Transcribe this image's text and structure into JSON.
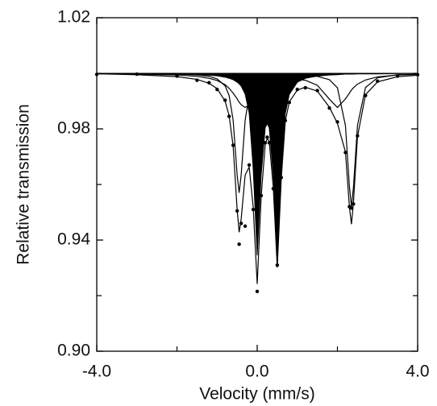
{
  "chart_data": {
    "type": "line",
    "x_label": "Velocity (mm/s)",
    "y_label": "Relative transmission",
    "x": [
      -4,
      -3,
      -2,
      -1.5,
      -1.2,
      -1.0,
      -0.8,
      -0.7,
      -0.6,
      -0.5,
      -0.45,
      -0.4,
      -0.3,
      -0.2,
      -0.1,
      0,
      0.1,
      0.2,
      0.25,
      0.3,
      0.4,
      0.5,
      0.6,
      0.7,
      0.8,
      1.0,
      1.2,
      1.5,
      1.8,
      2.0,
      2.2,
      2.3,
      2.35,
      2.4,
      2.5,
      2.7,
      3.0,
      3.5,
      4.0
    ],
    "series": [
      {
        "type": "filled",
        "color": "#000000",
        "values": [
          1.0,
          0.9999,
          0.9997,
          0.9995,
          0.9993,
          0.9991,
          0.9986,
          0.9982,
          0.9977,
          0.9968,
          0.9962,
          0.9954,
          0.9925,
          0.9857,
          0.9657,
          0.9345,
          0.9636,
          0.9804,
          0.9819,
          0.9803,
          0.9632,
          0.9335,
          0.9652,
          0.9855,
          0.9924,
          0.9968,
          0.9982,
          0.999,
          0.9994,
          0.9995,
          0.9997,
          0.9997,
          0.9997,
          0.9997,
          0.9998,
          0.9998,
          0.9998,
          0.9999,
          1.0
        ]
      },
      {
        "type": "line",
        "color": "#000000",
        "values": [
          0.9999,
          0.9999,
          0.9997,
          0.9994,
          0.9989,
          0.998,
          0.9955,
          0.992,
          0.9832,
          0.9634,
          0.957,
          0.9634,
          0.9832,
          0.992,
          0.9955,
          0.997,
          0.9979,
          0.9984,
          0.9986,
          0.9987,
          0.999,
          0.9991,
          0.9992,
          0.9993,
          0.9993,
          0.9993,
          0.9993,
          0.9989,
          0.9977,
          0.9948,
          0.9812,
          0.9591,
          0.952,
          0.9591,
          0.9813,
          0.9949,
          0.9984,
          0.9995,
          0.9997
        ]
      },
      {
        "type": "line",
        "color": "#000000",
        "values": [
          0.9999,
          0.9997,
          0.9994,
          0.9989,
          0.9982,
          0.9974,
          0.9959,
          0.9946,
          0.9929,
          0.9908,
          0.9896,
          0.9887,
          0.9877,
          0.9886,
          0.9907,
          0.9927,
          0.9944,
          0.9957,
          0.996,
          0.9965,
          0.997,
          0.9975,
          0.9977,
          0.9979,
          0.998,
          0.9979,
          0.9975,
          0.9957,
          0.9907,
          0.9877,
          0.9908,
          0.9929,
          0.994,
          0.9948,
          0.9961,
          0.9976,
          0.9987,
          0.9994,
          0.9996
        ]
      },
      {
        "type": "line",
        "color": "#000000",
        "values": [
          0.9998,
          0.9995,
          0.9988,
          0.9978,
          0.9964,
          0.9945,
          0.99,
          0.9848,
          0.9738,
          0.951,
          0.9428,
          0.9475,
          0.9634,
          0.9663,
          0.9519,
          0.9242,
          0.9559,
          0.9745,
          0.9765,
          0.9755,
          0.9592,
          0.9301,
          0.9621,
          0.9827,
          0.9897,
          0.994,
          0.995,
          0.9936,
          0.9878,
          0.982,
          0.9717,
          0.9517,
          0.9457,
          0.9536,
          0.9772,
          0.9923,
          0.9969,
          0.9988,
          0.9993
        ]
      },
      {
        "type": "points",
        "color": "#000000",
        "values": [
          0.9996,
          0.9997,
          0.999,
          0.9975,
          0.9966,
          0.9942,
          0.9903,
          0.9845,
          0.9741,
          0.9505,
          0.9385,
          0.946,
          0.945,
          0.967,
          0.951,
          0.9215,
          0.956,
          0.975,
          0.977,
          0.975,
          0.9585,
          0.931,
          0.9625,
          0.983,
          0.9895,
          0.9942,
          0.9948,
          0.9938,
          0.9875,
          0.9825,
          0.9715,
          0.952,
          0.9515,
          0.953,
          0.9775,
          0.992,
          0.9972,
          0.999,
          0.9995
        ]
      }
    ],
    "xlim": [
      -4,
      4
    ],
    "xticks": [
      {
        "value": -4,
        "label": "-4.0"
      },
      {
        "value": 0,
        "label": "0.0"
      },
      {
        "value": 4,
        "label": "4.0"
      }
    ],
    "xminorticks": [
      -2,
      2
    ],
    "ylim": [
      0.9,
      1.02
    ],
    "yticks": [
      {
        "value": 0.9,
        "label": "0.90"
      },
      0.94,
      0.98,
      1.02
    ],
    "yminorticks": [
      0.92,
      0.96,
      1.0
    ],
    "grid": false
  }
}
